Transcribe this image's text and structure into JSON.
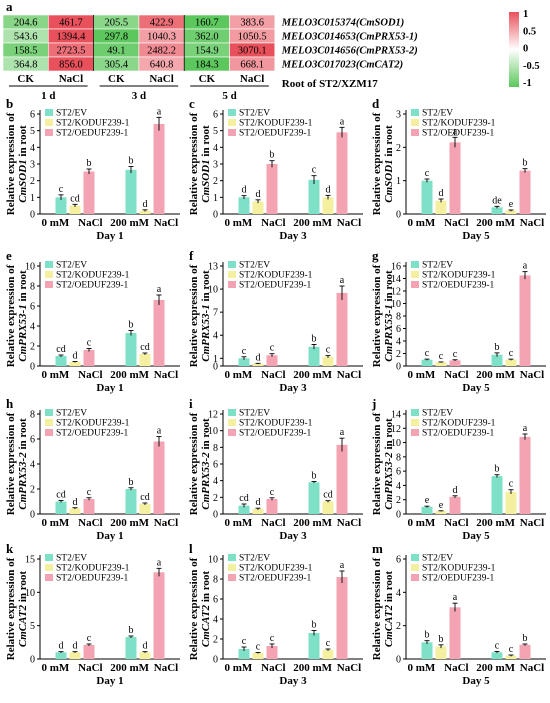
{
  "heatmap": {
    "panel_label": "a",
    "rows": [
      {
        "gene": "MELO3C015374(CmSOD1)",
        "values": [
          204.6,
          461.7,
          205.5,
          422.9,
          160.7,
          383.6
        ]
      },
      {
        "gene": "MELO3C014653(CmPRX53-1)",
        "values": [
          543.6,
          1394.4,
          297.8,
          1040.3,
          362.0,
          1050.5
        ]
      },
      {
        "gene": "MELO3C014656(CmPRX53-2)",
        "values": [
          158.5,
          2723.5,
          49.1,
          2482.2,
          154.9,
          3070.1
        ]
      },
      {
        "gene": "MELO3C017023(CmCAT2)",
        "values": [
          364.8,
          856.0,
          305.4,
          640.8,
          184.3,
          668.1
        ]
      }
    ],
    "treatments": [
      "CK",
      "NaCl",
      "CK",
      "NaCl",
      "CK",
      "NaCl"
    ],
    "days": [
      "1 d",
      "3 d",
      "5 d"
    ],
    "tissue_label": "Root of ST2/XZM17",
    "scale_ticks": [
      "1",
      "0.5",
      "0",
      "-0.5",
      "-1"
    ],
    "colors": {
      "high": "#e8505b",
      "mid": "#ffffff",
      "low": "#5cc75c"
    }
  },
  "panels_common": {
    "legend": [
      "ST2/EV",
      "ST2/KODUF239-1",
      "ST2/OEDUF239-1"
    ],
    "series_colors": [
      "#7fe0c8",
      "#f5f0a0",
      "#f4a3b3"
    ],
    "categories": [
      "0 mM",
      "NaCl",
      "200 mM",
      "NaCl"
    ],
    "ylabel_prefix": "Relative expression of",
    "ylabel_suffix": "in root"
  },
  "chart_data": [
    {
      "panel": "b",
      "type": "bar",
      "gene": "CmSOD1",
      "day": "Day 1",
      "ylim": [
        0,
        6
      ],
      "yticks": [
        0,
        1,
        2,
        3,
        4,
        5,
        6
      ],
      "series": [
        {
          "name": "ST2/EV",
          "values": [
            1.0,
            2.65
          ],
          "errors": [
            0.15,
            0.2
          ],
          "letters": [
            "c",
            "b"
          ]
        },
        {
          "name": "ST2/KODUF239-1",
          "values": [
            0.5,
            0.2
          ],
          "errors": [
            0.08,
            0.05
          ],
          "letters": [
            "cd",
            "d"
          ]
        },
        {
          "name": "ST2/OEDUF239-1",
          "values": [
            2.55,
            5.4
          ],
          "errors": [
            0.15,
            0.4
          ],
          "letters": [
            "b",
            "a"
          ]
        }
      ]
    },
    {
      "panel": "c",
      "type": "bar",
      "gene": "CmSOD1",
      "day": "Day 3",
      "ylim": [
        0,
        6
      ],
      "yticks": [
        0,
        1,
        2,
        3,
        4,
        5,
        6
      ],
      "series": [
        {
          "name": "ST2/EV",
          "values": [
            1.0,
            2.05
          ],
          "errors": [
            0.1,
            0.25
          ],
          "letters": [
            "d",
            "c"
          ]
        },
        {
          "name": "ST2/KODUF239-1",
          "values": [
            0.75,
            1.0
          ],
          "errors": [
            0.1,
            0.12
          ],
          "letters": [
            "d",
            "d"
          ]
        },
        {
          "name": "ST2/OEDUF239-1",
          "values": [
            3.0,
            4.9
          ],
          "errors": [
            0.2,
            0.3
          ],
          "letters": [
            "b",
            "a"
          ]
        }
      ]
    },
    {
      "panel": "d",
      "type": "bar",
      "gene": "CmSOD1",
      "day": "Day 5",
      "ylim": [
        0,
        3
      ],
      "yticks": [
        0,
        1,
        2,
        3
      ],
      "series": [
        {
          "name": "ST2/EV",
          "values": [
            1.0,
            0.2
          ],
          "errors": [
            0.05,
            0.03
          ],
          "letters": [
            "c",
            "de"
          ]
        },
        {
          "name": "ST2/KODUF239-1",
          "values": [
            0.4,
            0.1
          ],
          "errors": [
            0.05,
            0.02
          ],
          "letters": [
            "d",
            "e"
          ]
        },
        {
          "name": "ST2/OEDUF239-1",
          "values": [
            2.15,
            1.3
          ],
          "errors": [
            0.15,
            0.06
          ],
          "letters": [
            "a",
            "b"
          ]
        }
      ]
    },
    {
      "panel": "e",
      "type": "bar",
      "gene": "CmPRX53-1",
      "day": "Day 1",
      "ylim": [
        0,
        10
      ],
      "yticks": [
        0,
        2,
        4,
        6,
        8,
        10
      ],
      "series": [
        {
          "name": "ST2/EV",
          "values": [
            1.0,
            3.3
          ],
          "errors": [
            0.1,
            0.25
          ],
          "letters": [
            "cd",
            "b"
          ]
        },
        {
          "name": "ST2/KODUF239-1",
          "values": [
            0.4,
            1.2
          ],
          "errors": [
            0.05,
            0.1
          ],
          "letters": [
            "d",
            "cd"
          ]
        },
        {
          "name": "ST2/OEDUF239-1",
          "values": [
            1.6,
            6.6
          ],
          "errors": [
            0.15,
            0.5
          ],
          "letters": [
            "c",
            "a"
          ]
        }
      ]
    },
    {
      "panel": "f",
      "type": "bar",
      "gene": "CmPRX53-1",
      "day": "Day 3",
      "ylim": [
        0,
        13
      ],
      "yticks": [
        0,
        1,
        4,
        7,
        10,
        13
      ],
      "series": [
        {
          "name": "ST2/EV",
          "values": [
            1.0,
            2.5
          ],
          "errors": [
            0.2,
            0.3
          ],
          "letters": [
            "c",
            "b"
          ]
        },
        {
          "name": "ST2/KODUF239-1",
          "values": [
            0.3,
            1.2
          ],
          "errors": [
            0.05,
            0.15
          ],
          "letters": [
            "d",
            "c"
          ]
        },
        {
          "name": "ST2/OEDUF239-1",
          "values": [
            1.4,
            9.5
          ],
          "errors": [
            0.2,
            0.9
          ],
          "letters": [
            "c",
            "a"
          ]
        }
      ]
    },
    {
      "panel": "g",
      "type": "bar",
      "gene": "CmPRX53-1",
      "day": "Day 5",
      "ylim": [
        0,
        16
      ],
      "yticks": [
        0,
        2,
        4,
        6,
        8,
        10,
        12,
        14,
        16
      ],
      "series": [
        {
          "name": "ST2/EV",
          "values": [
            1.0,
            1.8
          ],
          "errors": [
            0.1,
            0.3
          ],
          "letters": [
            "c",
            "b"
          ]
        },
        {
          "name": "ST2/KODUF239-1",
          "values": [
            0.6,
            1.0
          ],
          "errors": [
            0.05,
            0.1
          ],
          "letters": [
            "c",
            "c"
          ]
        },
        {
          "name": "ST2/OEDUF239-1",
          "values": [
            0.9,
            14.5
          ],
          "errors": [
            0.1,
            0.6
          ],
          "letters": [
            "c",
            "a"
          ]
        }
      ]
    },
    {
      "panel": "h",
      "type": "bar",
      "gene": "CmPRX53-2",
      "day": "Day 1",
      "ylim": [
        0,
        8
      ],
      "yticks": [
        0,
        2,
        4,
        6,
        8
      ],
      "series": [
        {
          "name": "ST2/EV",
          "values": [
            1.0,
            2.0
          ],
          "errors": [
            0.08,
            0.1
          ],
          "letters": [
            "cd",
            "b"
          ]
        },
        {
          "name": "ST2/KODUF239-1",
          "values": [
            0.45,
            0.8
          ],
          "errors": [
            0.05,
            0.08
          ],
          "letters": [
            "d",
            "cd"
          ]
        },
        {
          "name": "ST2/OEDUF239-1",
          "values": [
            1.2,
            5.8
          ],
          "errors": [
            0.1,
            0.4
          ],
          "letters": [
            "c",
            "a"
          ]
        }
      ]
    },
    {
      "panel": "i",
      "type": "bar",
      "gene": "CmPRX53-2",
      "day": "Day 3",
      "ylim": [
        0,
        12
      ],
      "yticks": [
        0,
        2,
        4,
        6,
        8,
        10,
        12
      ],
      "series": [
        {
          "name": "ST2/EV",
          "values": [
            1.0,
            3.8
          ],
          "errors": [
            0.2,
            0.1
          ],
          "letters": [
            "cd",
            "b"
          ]
        },
        {
          "name": "ST2/KODUF239-1",
          "values": [
            0.6,
            1.5
          ],
          "errors": [
            0.1,
            0.1
          ],
          "letters": [
            "d",
            "cd"
          ]
        },
        {
          "name": "ST2/OEDUF239-1",
          "values": [
            1.8,
            8.3
          ],
          "errors": [
            0.15,
            0.8
          ],
          "letters": [
            "c",
            "a"
          ]
        }
      ]
    },
    {
      "panel": "j",
      "type": "bar",
      "gene": "CmPRX53-2",
      "day": "Day 5",
      "ylim": [
        0,
        14
      ],
      "yticks": [
        0,
        2,
        4,
        6,
        8,
        10,
        12,
        14
      ],
      "series": [
        {
          "name": "ST2/EV",
          "values": [
            1.0,
            5.3
          ],
          "errors": [
            0.1,
            0.2
          ],
          "letters": [
            "e",
            "b"
          ]
        },
        {
          "name": "ST2/KODUF239-1",
          "values": [
            0.4,
            3.1
          ],
          "errors": [
            0.05,
            0.3
          ],
          "letters": [
            "e",
            "c"
          ]
        },
        {
          "name": "ST2/OEDUF239-1",
          "values": [
            2.4,
            10.8
          ],
          "errors": [
            0.15,
            0.4
          ],
          "letters": [
            "d",
            "a"
          ]
        }
      ]
    },
    {
      "panel": "k",
      "type": "bar",
      "gene": "CmCAT2",
      "day": "Day 1",
      "ylim": [
        0,
        15
      ],
      "yticks": [
        0,
        5,
        10,
        15
      ],
      "series": [
        {
          "name": "ST2/EV",
          "values": [
            1.0,
            3.3
          ],
          "errors": [
            0.1,
            0.15
          ],
          "letters": [
            "d",
            "b"
          ]
        },
        {
          "name": "ST2/KODUF239-1",
          "values": [
            1.0,
            1.0
          ],
          "errors": [
            0.1,
            0.1
          ],
          "letters": [
            "d",
            "d"
          ]
        },
        {
          "name": "ST2/OEDUF239-1",
          "values": [
            2.1,
            13.0
          ],
          "errors": [
            0.15,
            0.6
          ],
          "letters": [
            "c",
            "a"
          ]
        }
      ]
    },
    {
      "panel": "l",
      "type": "bar",
      "gene": "CmCAT2",
      "day": "Day 3",
      "ylim": [
        0,
        10
      ],
      "yticks": [
        0,
        2,
        4,
        6,
        8,
        10
      ],
      "series": [
        {
          "name": "ST2/EV",
          "values": [
            1.0,
            2.6
          ],
          "errors": [
            0.2,
            0.25
          ],
          "letters": [
            "c",
            "b"
          ]
        },
        {
          "name": "ST2/KODUF239-1",
          "values": [
            0.6,
            0.9
          ],
          "errors": [
            0.05,
            0.1
          ],
          "letters": [
            "c",
            "c"
          ]
        },
        {
          "name": "ST2/OEDUF239-1",
          "values": [
            1.3,
            8.2
          ],
          "errors": [
            0.2,
            0.6
          ],
          "letters": [
            "c",
            "a"
          ]
        }
      ]
    },
    {
      "panel": "m",
      "type": "bar",
      "gene": "CmCAT2",
      "day": "Day 5",
      "ylim": [
        0,
        6
      ],
      "yticks": [
        0,
        2,
        4,
        6
      ],
      "series": [
        {
          "name": "ST2/EV",
          "values": [
            1.0,
            0.4
          ],
          "errors": [
            0.1,
            0.05
          ],
          "letters": [
            "b",
            "c"
          ]
        },
        {
          "name": "ST2/KODUF239-1",
          "values": [
            0.75,
            0.2
          ],
          "errors": [
            0.1,
            0.04
          ],
          "letters": [
            "b",
            "c"
          ]
        },
        {
          "name": "ST2/OEDUF239-1",
          "values": [
            3.1,
            0.85
          ],
          "errors": [
            0.25,
            0.05
          ],
          "letters": [
            "a",
            "b"
          ]
        }
      ]
    }
  ]
}
